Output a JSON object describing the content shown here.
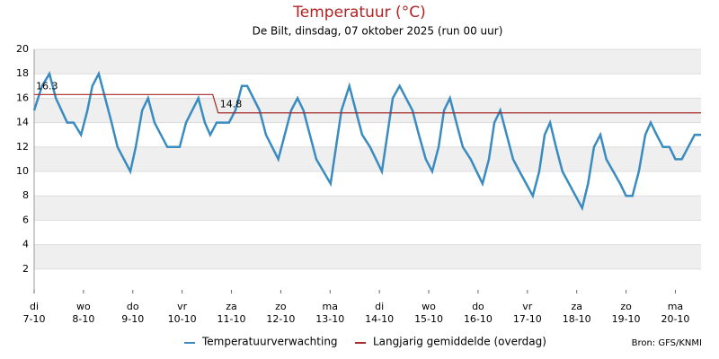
{
  "chart_data": {
    "type": "line",
    "title": "Temperatuur (°C)",
    "subtitle": "De Bilt, dinsdag, 07 oktober 2025 (run 00 uur)",
    "source": "Bron: GFS/KNMI",
    "xlim": [
      0,
      13.52
    ],
    "xticks": [
      {
        "value": 0,
        "label": [
          "di",
          "7-10"
        ]
      },
      {
        "value": 1,
        "label": [
          "wo",
          "8-10"
        ]
      },
      {
        "value": 2,
        "label": [
          "do",
          "9-10"
        ]
      },
      {
        "value": 3,
        "label": [
          "vr",
          "10-10"
        ]
      },
      {
        "value": 4,
        "label": [
          "za",
          "11-10"
        ]
      },
      {
        "value": 5,
        "label": [
          "zo",
          "12-10"
        ]
      },
      {
        "value": 6,
        "label": [
          "ma",
          "13-10"
        ]
      },
      {
        "value": 7,
        "label": [
          "di",
          "14-10"
        ]
      },
      {
        "value": 8,
        "label": [
          "wo",
          "15-10"
        ]
      },
      {
        "value": 9,
        "label": [
          "do",
          "16-10"
        ]
      },
      {
        "value": 10,
        "label": [
          "vr",
          "17-10"
        ]
      },
      {
        "value": 11,
        "label": [
          "za",
          "18-10"
        ]
      },
      {
        "value": 12,
        "label": [
          "zo",
          "19-10"
        ]
      },
      {
        "value": 13,
        "label": [
          "ma",
          "20-10"
        ]
      }
    ],
    "ylim": [
      0,
      20
    ],
    "yticks": [
      2,
      4,
      6,
      8,
      10,
      12,
      14,
      16,
      18,
      20
    ],
    "grid": true,
    "banded": true,
    "series": [
      {
        "name": "Temperatuurverwachting",
        "color": "#3a8cc0",
        "x": [
          0,
          0.16,
          0.31,
          0.44,
          0.67,
          0.8,
          0.95,
          1.08,
          1.18,
          1.31,
          1.57,
          1.69,
          1.95,
          2.06,
          2.19,
          2.31,
          2.44,
          2.7,
          2.95,
          3.08,
          3.33,
          3.46,
          3.57,
          3.7,
          3.95,
          4.08,
          4.21,
          4.32,
          4.57,
          4.7,
          4.95,
          5.21,
          5.34,
          5.46,
          5.72,
          6.01,
          6.23,
          6.39,
          6.52,
          6.65,
          6.81,
          7.05,
          7.27,
          7.41,
          7.54,
          7.67,
          7.8,
          7.94,
          8.07,
          8.2,
          8.31,
          8.43,
          8.56,
          8.69,
          8.85,
          9.09,
          9.22,
          9.33,
          9.45,
          9.58,
          9.71,
          9.84,
          10.11,
          10.24,
          10.35,
          10.46,
          10.58,
          10.71,
          11.11,
          11.23,
          11.35,
          11.48,
          11.6,
          11.88,
          12,
          12.13,
          12.26,
          12.39,
          12.5,
          12.62,
          12.75,
          12.88,
          13,
          13.13,
          13.26,
          13.39,
          13.52
        ],
        "values": [
          15,
          17,
          18,
          16,
          14,
          14,
          13,
          15,
          17,
          18,
          14,
          12,
          10,
          12,
          15,
          16,
          14,
          12,
          12,
          14,
          16,
          14,
          13,
          14,
          14,
          15,
          17,
          17,
          15,
          13,
          11,
          15,
          16,
          15,
          11,
          9,
          15,
          17,
          15,
          13,
          12,
          10,
          16,
          17,
          16,
          15,
          13,
          11,
          10,
          12,
          15,
          16,
          14,
          12,
          11,
          9,
          11,
          14,
          15,
          13,
          11,
          10,
          8,
          10,
          13,
          14,
          12,
          10,
          7,
          9,
          12,
          13,
          11,
          9,
          8,
          8,
          10,
          13,
          14,
          13,
          12,
          12,
          11,
          11,
          12,
          13,
          13
        ]
      },
      {
        "name": "Langjarig gemiddelde (overdag)",
        "color": "#a52a2a",
        "x": [
          0,
          3.62,
          3.73,
          13.52
        ],
        "values": [
          16.3,
          16.3,
          14.8,
          14.8
        ],
        "value_labels": [
          "16.3",
          null,
          "14.8",
          null
        ]
      }
    ]
  }
}
